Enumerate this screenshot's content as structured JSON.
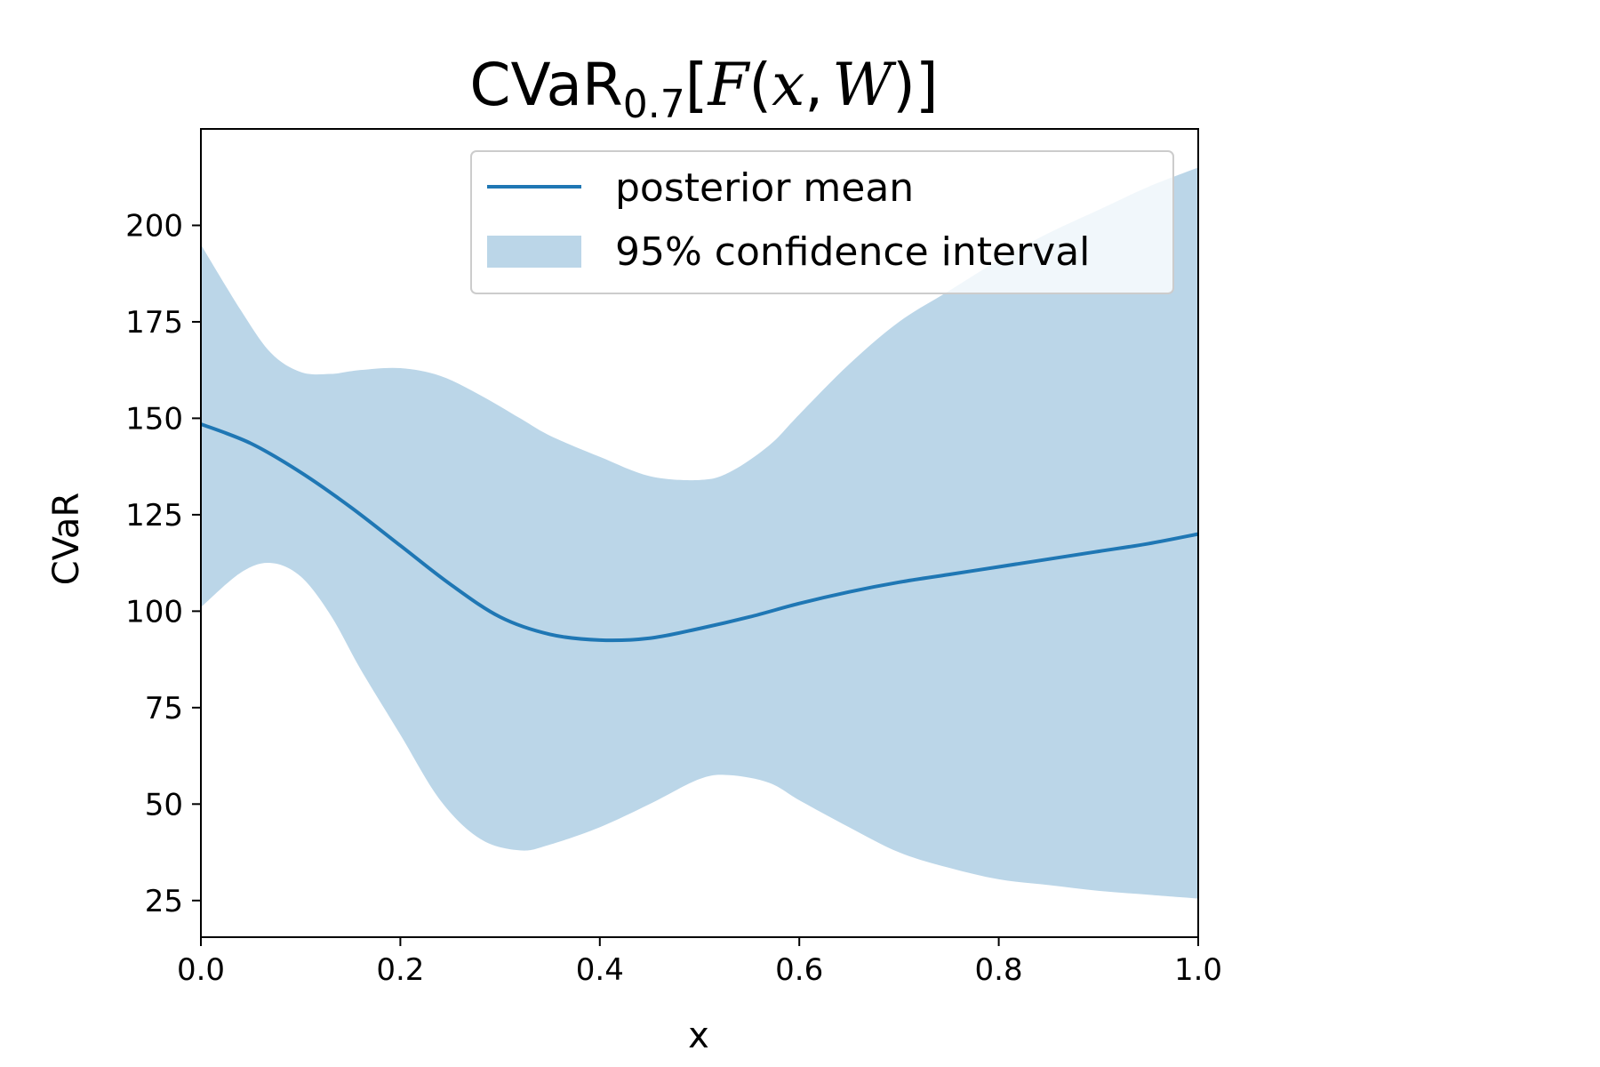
{
  "chart_data": {
    "type": "line",
    "title": {
      "prefix": "CVaR",
      "subscript": "0.7",
      "open": "[",
      "F": "F",
      "lp": "(",
      "x": "x",
      "comma": ",",
      "W": "W",
      "rp": ")",
      "close": "]"
    },
    "xlabel": "x",
    "ylabel": "CVaR",
    "xlim": [
      0.0,
      1.0
    ],
    "ylim": [
      15.5,
      225
    ],
    "xticks": [
      0.0,
      0.2,
      0.4,
      0.6,
      0.8,
      1.0
    ],
    "xtick_labels": [
      "0.0",
      "0.2",
      "0.4",
      "0.6",
      "0.8",
      "1.0"
    ],
    "yticks": [
      25,
      50,
      75,
      100,
      125,
      150,
      175,
      200
    ],
    "ytick_labels": [
      "25",
      "50",
      "75",
      "100",
      "125",
      "150",
      "175",
      "200"
    ],
    "grid": false,
    "legend": {
      "placement": "upper center",
      "entries": [
        {
          "label": "posterior mean",
          "kind": "line"
        },
        {
          "label": "95% confidence interval",
          "kind": "band"
        }
      ]
    },
    "series": [
      {
        "name": "posterior mean",
        "color": "#1f77b4",
        "x": [
          0.0,
          0.05,
          0.1,
          0.15,
          0.2,
          0.25,
          0.3,
          0.35,
          0.4,
          0.45,
          0.5,
          0.55,
          0.6,
          0.65,
          0.7,
          0.75,
          0.8,
          0.85,
          0.9,
          0.95,
          1.0
        ],
        "y": [
          148.5,
          143.5,
          136,
          127,
          117,
          107,
          98.5,
          94,
          92.5,
          93,
          95.5,
          98.5,
          102,
          105,
          107.5,
          109.5,
          111.5,
          113.5,
          115.5,
          117.5,
          120
        ]
      }
    ],
    "band": {
      "name": "95% confidence interval",
      "color": "#bbd6e8",
      "x": [
        0.0,
        0.04,
        0.07,
        0.1,
        0.13,
        0.16,
        0.2,
        0.24,
        0.28,
        0.32,
        0.35,
        0.4,
        0.45,
        0.5,
        0.53,
        0.57,
        0.6,
        0.65,
        0.7,
        0.75,
        0.8,
        0.85,
        0.9,
        0.95,
        1.0
      ],
      "upper": [
        195,
        178,
        167,
        162,
        161.5,
        162.5,
        163,
        161,
        156,
        150,
        145.5,
        140,
        135,
        134,
        136,
        143,
        151,
        164,
        175,
        183,
        191,
        198,
        204,
        210,
        215
      ],
      "lower": [
        101,
        110,
        112.5,
        109,
        99,
        85,
        68,
        51,
        41,
        38,
        39.5,
        44,
        50,
        56.5,
        57.5,
        55.5,
        51,
        44,
        37.5,
        33.5,
        30.5,
        29,
        27.5,
        26.5,
        25.5
      ]
    }
  }
}
